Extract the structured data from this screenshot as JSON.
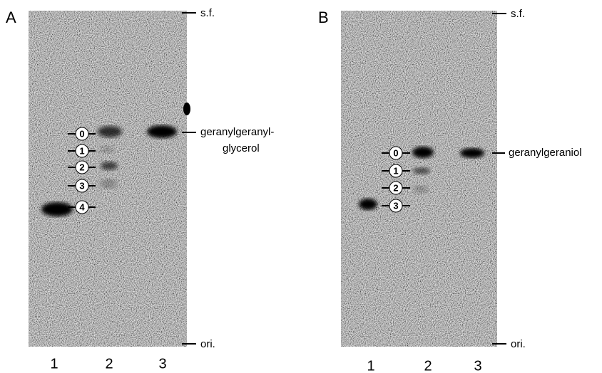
{
  "panels": [
    {
      "label": "A",
      "front_label": "s.f.",
      "origin_label": "ori.",
      "product_label": [
        "geranylgeranyl-",
        "glycerol"
      ],
      "spot_labels": [
        "0",
        "1",
        "2",
        "3",
        "4"
      ],
      "lanes": [
        "1",
        "2",
        "3"
      ]
    },
    {
      "label": "B",
      "front_label": "s.f.",
      "origin_label": "ori.",
      "product_label": [
        "geranylgeraniol"
      ],
      "spot_labels": [
        "0",
        "1",
        "2",
        "3"
      ],
      "lanes": [
        "1",
        "2",
        "3"
      ]
    }
  ]
}
